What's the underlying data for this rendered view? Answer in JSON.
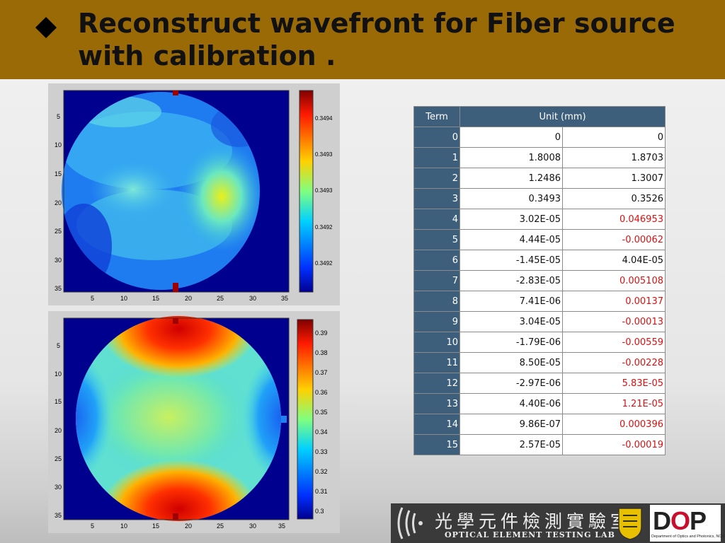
{
  "slide": {
    "title": "Reconstruct wavefront for Fiber source with calibration ."
  },
  "colors": {
    "title_bar": "#9a6a06",
    "table_header": "#3d5f7c",
    "negative_value": "#e01010"
  },
  "plots": [
    {
      "name": "wavefront-top",
      "x_ticks": [
        "5",
        "10",
        "15",
        "20",
        "25",
        "30",
        "35"
      ],
      "y_ticks": [
        "5",
        "10",
        "15",
        "20",
        "25",
        "30",
        "35"
      ],
      "colorbar_ticks": [
        "0.3494",
        "0.3493",
        "0.3493",
        "0.3492",
        "0.3492"
      ]
    },
    {
      "name": "wavefront-bottom",
      "x_ticks": [
        "5",
        "10",
        "15",
        "20",
        "25",
        "30",
        "35"
      ],
      "y_ticks": [
        "5",
        "10",
        "15",
        "20",
        "25",
        "30",
        "35"
      ],
      "colorbar_ticks": [
        "0.39",
        "0.38",
        "0.37",
        "0.36",
        "0.35",
        "0.34",
        "0.33",
        "0.32",
        "0.31",
        "0.3"
      ]
    }
  ],
  "table": {
    "header_term": "Term",
    "header_unit": "Unit (mm)",
    "rows": [
      {
        "term": "0",
        "a": "0",
        "b": "0",
        "b_red": false
      },
      {
        "term": "1",
        "a": "1.8008",
        "b": "1.8703",
        "b_red": false
      },
      {
        "term": "2",
        "a": "1.2486",
        "b": "1.3007",
        "b_red": false
      },
      {
        "term": "3",
        "a": "0.3493",
        "b": "0.3526",
        "b_red": false
      },
      {
        "term": "4",
        "a": "3.02E-05",
        "b": "0.046953",
        "b_red": true
      },
      {
        "term": "5",
        "a": "4.44E-05",
        "b": "-0.00062",
        "b_red": true
      },
      {
        "term": "6",
        "a": "-1.45E-05",
        "b": "4.04E-05",
        "b_red": false
      },
      {
        "term": "7",
        "a": "-2.83E-05",
        "b": "0.005108",
        "b_red": true
      },
      {
        "term": "8",
        "a": "7.41E-06",
        "b": "0.00137",
        "b_red": true
      },
      {
        "term": "9",
        "a": "3.04E-05",
        "b": "-0.00013",
        "b_red": true
      },
      {
        "term": "10",
        "a": "-1.79E-06",
        "b": "-0.00559",
        "b_red": true
      },
      {
        "term": "11",
        "a": "8.50E-05",
        "b": "-0.00228",
        "b_red": true
      },
      {
        "term": "12",
        "a": "-2.97E-06",
        "b": "5.83E-05",
        "b_red": true
      },
      {
        "term": "13",
        "a": "4.40E-06",
        "b": "1.21E-05",
        "b_red": true
      },
      {
        "term": "14",
        "a": "9.86E-07",
        "b": "0.000396",
        "b_red": true
      },
      {
        "term": "15",
        "a": "2.57E-05",
        "b": "-0.00019",
        "b_red": true
      }
    ]
  },
  "footer": {
    "chinese_title": "光學元件檢測實驗室",
    "english_title": "OPTICAL ELEMENT TESTING LAB",
    "logo_text_d": "D",
    "logo_text_o": "O",
    "logo_text_p": "P",
    "logo_subtitle": "Department of Optics and Photonics, NCU"
  }
}
